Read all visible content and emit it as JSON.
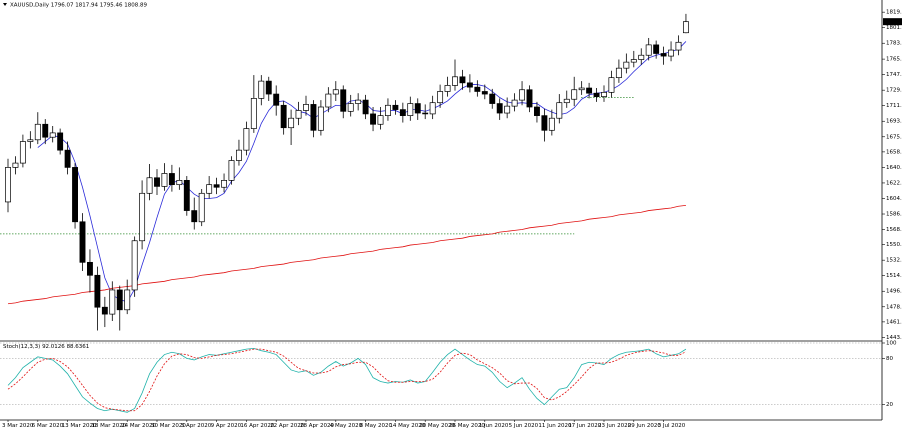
{
  "chart_data": {
    "type": "candlestick",
    "symbol": "XAUUSD,Daily",
    "categories": [
      "3 Mar 2020",
      null,
      null,
      null,
      "6 Mar 2020",
      null,
      null,
      null,
      "13 Mar 2020",
      null,
      null,
      null,
      "18 Mar 2020",
      null,
      null,
      null,
      "24 Mar 2020",
      null,
      null,
      null,
      "30 Mar 2020",
      null,
      null,
      null,
      "3 Apr 2020",
      null,
      null,
      null,
      "9 Apr 2020",
      null,
      null,
      null,
      "16 Apr 2020",
      null,
      null,
      null,
      "22 Apr 2020",
      null,
      null,
      null,
      "28 Apr 2020",
      null,
      null,
      null,
      "4 May 2020",
      null,
      null,
      null,
      "8 May 2020",
      null,
      null,
      null,
      "14 May 2020",
      null,
      null,
      null,
      "20 May 2020",
      null,
      null,
      null,
      "26 May 2020",
      null,
      null,
      null,
      "1 Jun 2020",
      null,
      null,
      null,
      "5 Jun 2020",
      null,
      null,
      null,
      "11 Jun 2020",
      null,
      null,
      null,
      "17 Jun 2020",
      null,
      null,
      null,
      "23 Jun 2020",
      null,
      null,
      null,
      "29 Jun 2020",
      null,
      null,
      null,
      "3 Jul 2020",
      null,
      null,
      null
    ],
    "open": [
      1600,
      1640,
      1645,
      1670,
      1672,
      1690,
      1675,
      1680,
      1660,
      1640,
      1577,
      1530,
      1515,
      1478,
      1470,
      1498,
      1475,
      1498,
      1555,
      1610,
      1628,
      1618,
      1633,
      1620,
      1625,
      1590,
      1577,
      1610,
      1620,
      1617,
      1625,
      1648,
      1660,
      1685,
      1720,
      1740,
      1725,
      1712,
      1686,
      1697,
      1706,
      1713,
      1683,
      1710,
      1725,
      1730,
      1705,
      1714,
      1718,
      1702,
      1690,
      1700,
      1712,
      1707,
      1700,
      1714,
      1703,
      1702,
      1715,
      1728,
      1735,
      1745,
      1738,
      1733,
      1728,
      1725,
      1714,
      1703,
      1711,
      1718,
      1730,
      1710,
      1700,
      1683,
      1697,
      1715,
      1719,
      1730,
      1732,
      1726,
      1722,
      1727,
      1744,
      1755,
      1762,
      1765,
      1770,
      1782,
      1772,
      1769,
      1776,
      1796.07
    ],
    "high": [
      1650,
      1653,
      1678,
      1682,
      1704,
      1696,
      1688,
      1685,
      1670,
      1645,
      1587,
      1545,
      1525,
      1490,
      1508,
      1503,
      1510,
      1560,
      1625,
      1644,
      1638,
      1645,
      1643,
      1640,
      1630,
      1605,
      1615,
      1630,
      1628,
      1633,
      1653,
      1672,
      1693,
      1747,
      1747,
      1745,
      1735,
      1717,
      1707,
      1716,
      1723,
      1718,
      1718,
      1733,
      1740,
      1735,
      1724,
      1726,
      1724,
      1710,
      1710,
      1720,
      1718,
      1715,
      1722,
      1720,
      1713,
      1723,
      1736,
      1745,
      1765,
      1753,
      1748,
      1741,
      1736,
      1731,
      1720,
      1721,
      1726,
      1740,
      1735,
      1716,
      1708,
      1707,
      1725,
      1729,
      1745,
      1740,
      1738,
      1732,
      1735,
      1752,
      1765,
      1772,
      1775,
      1778,
      1790,
      1787,
      1780,
      1786,
      1793,
      1817.94
    ],
    "low": [
      1588,
      1632,
      1640,
      1662,
      1667,
      1667,
      1669,
      1655,
      1632,
      1569,
      1520,
      1495,
      1451,
      1455,
      1462,
      1451,
      1470,
      1490,
      1545,
      1602,
      1608,
      1613,
      1612,
      1614,
      1584,
      1568,
      1572,
      1604,
      1609,
      1611,
      1620,
      1642,
      1654,
      1680,
      1712,
      1717,
      1700,
      1678,
      1666,
      1689,
      1700,
      1675,
      1677,
      1704,
      1717,
      1697,
      1699,
      1706,
      1696,
      1682,
      1684,
      1694,
      1701,
      1692,
      1694,
      1695,
      1696,
      1696,
      1709,
      1722,
      1729,
      1730,
      1727,
      1722,
      1719,
      1708,
      1695,
      1697,
      1705,
      1712,
      1704,
      1692,
      1670,
      1677,
      1691,
      1709,
      1711,
      1724,
      1720,
      1716,
      1716,
      1721,
      1738,
      1749,
      1756,
      1759,
      1764,
      1766,
      1759,
      1763,
      1770,
      1795.46
    ],
    "close": [
      1640,
      1645,
      1670,
      1672,
      1690,
      1675,
      1680,
      1660,
      1640,
      1577,
      1530,
      1515,
      1478,
      1470,
      1498,
      1475,
      1498,
      1555,
      1610,
      1628,
      1618,
      1633,
      1620,
      1625,
      1590,
      1577,
      1610,
      1620,
      1617,
      1625,
      1648,
      1660,
      1685,
      1720,
      1740,
      1725,
      1712,
      1686,
      1697,
      1706,
      1713,
      1683,
      1710,
      1725,
      1730,
      1705,
      1714,
      1718,
      1702,
      1690,
      1700,
      1712,
      1707,
      1700,
      1714,
      1703,
      1702,
      1715,
      1728,
      1735,
      1745,
      1738,
      1733,
      1728,
      1725,
      1714,
      1703,
      1711,
      1718,
      1730,
      1710,
      1700,
      1683,
      1697,
      1715,
      1719,
      1730,
      1732,
      1726,
      1722,
      1727,
      1744,
      1755,
      1762,
      1765,
      1770,
      1782,
      1772,
      1769,
      1776,
      1785,
      1808.89
    ],
    "up_color": "#ffffff",
    "down_color": "#000000",
    "overlays": [
      {
        "color": "#2b2bd9",
        "values": [
          null,
          null,
          null,
          null,
          1663,
          1670,
          1677,
          1675,
          1667,
          1646,
          1617,
          1584,
          1548,
          1512,
          1492,
          1487,
          1484,
          1499,
          1527,
          1553,
          1582,
          1609,
          1622,
          1625,
          1617,
          1609,
          1604,
          1604,
          1605,
          1610,
          1624,
          1634,
          1647,
          1668,
          1691,
          1706,
          1716,
          1717,
          1712,
          1705,
          1703,
          1697,
          1702,
          1707,
          1712,
          1711,
          1717,
          1718,
          1714,
          1706,
          1705,
          1706,
          1706,
          1702,
          1707,
          1707,
          1705,
          1708,
          1712,
          1717,
          1725,
          1732,
          1736,
          1736,
          1734,
          1728,
          1721,
          1716,
          1714,
          1715,
          1714,
          1714,
          1708,
          1704,
          1701,
          1703,
          1709,
          1719,
          1724,
          1726,
          1727,
          1730,
          1735,
          1742,
          1751,
          1759,
          1767,
          1770,
          1772,
          1774,
          1777,
          1786
        ]
      },
      {
        "color": "#e01010",
        "values": [
          1482,
          1483,
          1485,
          1486,
          1487,
          1488,
          1490,
          1491,
          1492,
          1493,
          1495,
          1496,
          1497,
          1498,
          1500,
          1501,
          1502,
          1503,
          1505,
          1506,
          1507,
          1508,
          1510,
          1511,
          1512,
          1513,
          1515,
          1516,
          1517,
          1518,
          1520,
          1521,
          1522,
          1523,
          1525,
          1526,
          1527,
          1528,
          1530,
          1531,
          1532,
          1533,
          1535,
          1536,
          1537,
          1538,
          1540,
          1541,
          1542,
          1543,
          1545,
          1546,
          1547,
          1548,
          1550,
          1551,
          1552,
          1553,
          1555,
          1556,
          1557,
          1558,
          1560,
          1561,
          1562,
          1563,
          1565,
          1566,
          1567,
          1568,
          1570,
          1571,
          1572,
          1573,
          1575,
          1576,
          1577,
          1578,
          1580,
          1581,
          1582,
          1583,
          1585,
          1586,
          1587,
          1588,
          1590,
          1591,
          1592,
          1593,
          1595,
          1596
        ]
      }
    ],
    "levels": [
      {
        "value": 1563,
        "bars": [
          0,
          76
        ],
        "color": "#2e8b2e"
      },
      {
        "value": 1721,
        "bars": [
          78,
          84
        ],
        "color": "#2e8b2e"
      }
    ],
    "ylim": [
      1440,
      1834
    ],
    "yticks": [
      1819.9,
      1801.9,
      1783.9,
      1765.5,
      1747.5,
      1729.5,
      1711.5,
      1693.5,
      1675.5,
      {
        "value": 1658,
        "label": "1658.0"
      },
      {
        "value": 1640,
        "label": "1640.0"
      },
      {
        "value": 1622,
        "label": "1622.0"
      },
      {
        "value": 1604,
        "label": "1604.0"
      },
      {
        "value": 1586,
        "label": "1586.0"
      },
      {
        "value": 1568,
        "label": "1568.0"
      },
      1550.5,
      1532.5,
      1514.5,
      1496.5,
      1478.5,
      {
        "value": 1461,
        "label": "1461.0"
      },
      {
        "value": 1443,
        "label": "1443.0"
      }
    ],
    "stoch": {
      "title": "Stoch(12,3,3)",
      "ylim": [
        0,
        100
      ],
      "yticks": [
        100,
        80,
        20
      ],
      "lines": [
        {
          "color": "#20b2aa",
          "dash": false,
          "values": [
            45,
            55,
            68,
            75,
            82,
            80,
            78,
            70,
            60,
            45,
            30,
            22,
            15,
            12,
            14,
            12,
            10,
            15,
            35,
            60,
            75,
            85,
            88,
            86,
            80,
            78,
            82,
            85,
            84,
            86,
            88,
            90,
            92,
            93,
            90,
            88,
            85,
            75,
            65,
            62,
            64,
            58,
            62,
            70,
            76,
            70,
            74,
            80,
            72,
            55,
            50,
            48,
            50,
            49,
            52,
            48,
            50,
            62,
            75,
            85,
            92,
            85,
            78,
            72,
            70,
            62,
            50,
            42,
            48,
            55,
            40,
            28,
            20,
            30,
            40,
            42,
            55,
            72,
            75,
            74,
            72,
            80,
            85,
            88,
            89,
            90,
            92,
            86,
            82,
            84,
            86,
            92.0126
          ]
        },
        {
          "color": "#e01010",
          "dash": true,
          "values": [
            40,
            47,
            56,
            66,
            75,
            79,
            80,
            76,
            69,
            58,
            45,
            32,
            22,
            16,
            14,
            13,
            12,
            12,
            20,
            37,
            57,
            73,
            83,
            86,
            85,
            81,
            80,
            82,
            84,
            85,
            86,
            88,
            90,
            92,
            92,
            90,
            88,
            83,
            75,
            67,
            64,
            61,
            61,
            63,
            69,
            72,
            73,
            75,
            75,
            69,
            59,
            51,
            49,
            49,
            50,
            50,
            50,
            53,
            62,
            74,
            84,
            87,
            85,
            78,
            73,
            68,
            61,
            51,
            47,
            48,
            48,
            41,
            29,
            26,
            30,
            37,
            46,
            56,
            67,
            74,
            74,
            75,
            79,
            84,
            87,
            89,
            90,
            89,
            87,
            84,
            84,
            88.6361
          ]
        }
      ]
    }
  }
}
